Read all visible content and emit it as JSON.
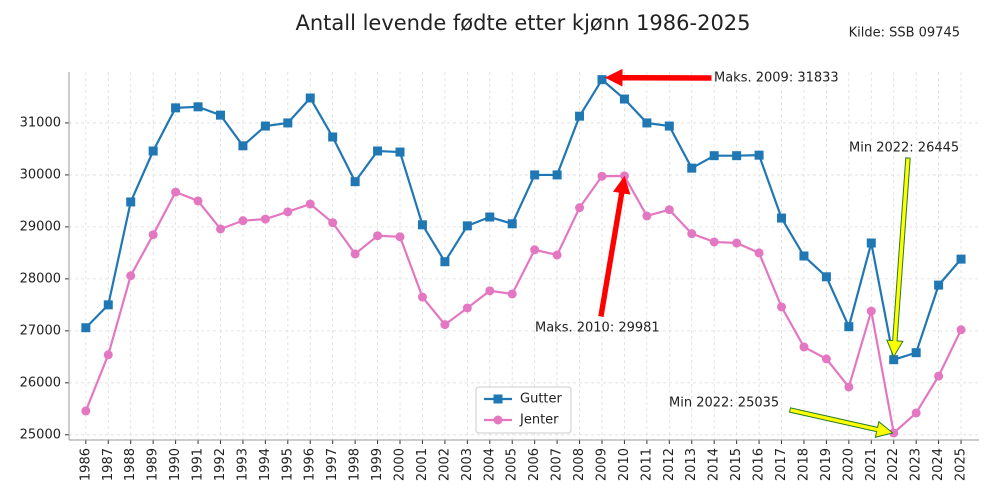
{
  "chart_data": {
    "type": "line",
    "title": "Antall levende fødte etter kjønn 1986-2025",
    "source": "Kilde: SSB 09745",
    "x": [
      1986,
      1987,
      1988,
      1989,
      1990,
      1991,
      1992,
      1993,
      1994,
      1995,
      1996,
      1997,
      1998,
      1999,
      2000,
      2001,
      2002,
      2003,
      2004,
      2005,
      2006,
      2007,
      2008,
      2009,
      2010,
      2011,
      2012,
      2013,
      2014,
      2015,
      2016,
      2017,
      2018,
      2019,
      2020,
      2021,
      2022,
      2023,
      2024,
      2025
    ],
    "series": [
      {
        "name": "Gutter",
        "color": "#1f77b4",
        "marker": "square",
        "values": [
          27060,
          27500,
          29480,
          30460,
          31290,
          31310,
          31150,
          30560,
          30940,
          31000,
          31480,
          30730,
          29870,
          30460,
          30440,
          29040,
          28330,
          29020,
          29190,
          29060,
          30000,
          30000,
          31130,
          31833,
          31460,
          31000,
          30940,
          30130,
          30370,
          30370,
          30380,
          29170,
          28440,
          28040,
          27080,
          28690,
          26445,
          26580,
          27880,
          28380
        ]
      },
      {
        "name": "Jenter",
        "color": "#e377c2",
        "marker": "circle",
        "values": [
          25460,
          26540,
          28060,
          28850,
          29670,
          29500,
          28960,
          29120,
          29150,
          29290,
          29440,
          29080,
          28480,
          28830,
          28810,
          27650,
          27120,
          27440,
          27770,
          27710,
          28560,
          28460,
          29370,
          29975,
          29981,
          29210,
          29330,
          28870,
          28710,
          28690,
          28500,
          27460,
          26690,
          26460,
          25920,
          27380,
          25035,
          25420,
          26130,
          27020
        ]
      }
    ],
    "annotations": [
      "Maks. 2009: 31833",
      "Maks. 2010: 29981",
      "Min 2022: 26445",
      "Min 2022: 25035"
    ],
    "xlim": [
      1985.25,
      2025.8
    ],
    "xticks": [
      1986,
      1987,
      1988,
      1989,
      1990,
      1991,
      1992,
      1993,
      1994,
      1995,
      1996,
      1997,
      1998,
      1999,
      2000,
      2001,
      2002,
      2003,
      2004,
      2005,
      2006,
      2007,
      2008,
      2009,
      2010,
      2011,
      2012,
      2013,
      2014,
      2015,
      2016,
      2017,
      2018,
      2019,
      2020,
      2021,
      2022,
      2023,
      2024,
      2025
    ],
    "ylim": [
      24900,
      31980
    ],
    "yticks": [
      25000,
      26000,
      27000,
      28000,
      29000,
      30000,
      31000
    ],
    "grid": true,
    "legend": "lower center"
  }
}
